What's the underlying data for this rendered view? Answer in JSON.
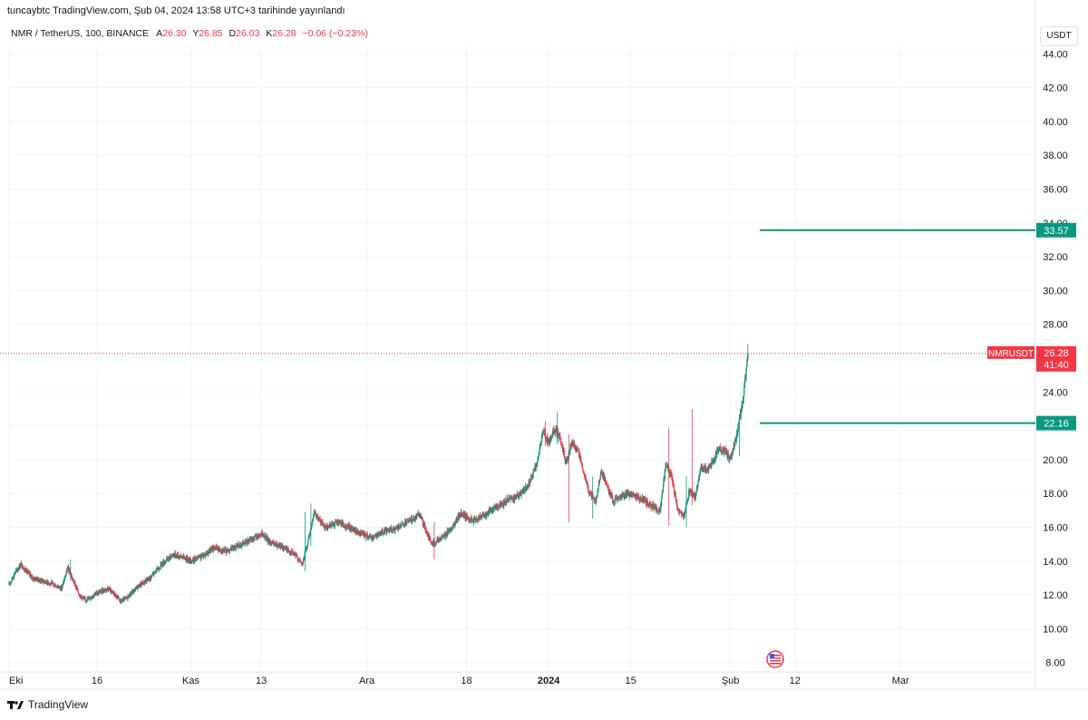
{
  "caption": "tuncaybtc TradingView.com, Şub 04, 2024 13:58 UTC+3 tarihinde yayınlandı",
  "header": {
    "symbol": "NMR / TetherUS, 100, BINANCE",
    "open_label": "A",
    "open": "26.30",
    "high_label": "Y",
    "high": "26.85",
    "low_label": "D",
    "low": "26.03",
    "close_label": "K",
    "close": "26.28",
    "change": "−0.06 (−0.23%)"
  },
  "currency_button": "USDT",
  "colors": {
    "up": "#089981",
    "down": "#f23645",
    "level": "#089981",
    "grid": "#f0f3fa",
    "axis_text": "#131722"
  },
  "chart_data": {
    "type": "candlestick",
    "y_ticks": [
      "8.00",
      "10.00",
      "12.00",
      "14.00",
      "16.00",
      "18.00",
      "20.00",
      "22.00",
      "24.00",
      "26.00",
      "28.00",
      "30.00",
      "32.00",
      "34.00",
      "36.00",
      "38.00",
      "40.00",
      "42.00",
      "44.00"
    ],
    "ylim": [
      7.5,
      44.5
    ],
    "x_ticks": [
      {
        "label": "Eki",
        "day": 0
      },
      {
        "label": "16",
        "day": 15
      },
      {
        "label": "Kas",
        "day": 31
      },
      {
        "label": "13",
        "day": 43
      },
      {
        "label": "Ara",
        "day": 61
      },
      {
        "label": "18",
        "day": 78
      },
      {
        "label": "2024",
        "day": 92,
        "bold": true
      },
      {
        "label": "15",
        "day": 106
      },
      {
        "label": "Şub",
        "day": 123
      },
      {
        "label": "12",
        "day": 134
      },
      {
        "label": "Mar",
        "day": 152
      }
    ],
    "xlim_days": [
      0,
      175
    ],
    "last_day": 125,
    "price_path": [
      [
        0,
        12.6
      ],
      [
        1,
        13.3
      ],
      [
        2,
        13.8
      ],
      [
        4,
        13.0
      ],
      [
        7,
        12.7
      ],
      [
        9,
        12.4
      ],
      [
        10,
        13.6
      ],
      [
        12,
        12.0
      ],
      [
        13,
        11.7
      ],
      [
        15,
        12.1
      ],
      [
        17,
        12.4
      ],
      [
        19,
        11.6
      ],
      [
        20,
        11.8
      ],
      [
        22,
        12.5
      ],
      [
        24,
        13.0
      ],
      [
        26,
        13.8
      ],
      [
        28,
        14.4
      ],
      [
        30,
        14.2
      ],
      [
        31,
        14.0
      ],
      [
        33,
        14.3
      ],
      [
        35,
        14.8
      ],
      [
        37,
        14.6
      ],
      [
        39,
        14.9
      ],
      [
        41,
        15.2
      ],
      [
        43,
        15.6
      ],
      [
        45,
        15.0
      ],
      [
        47,
        14.8
      ],
      [
        49,
        14.3
      ],
      [
        50,
        13.8
      ],
      [
        51,
        15.2
      ],
      [
        52,
        16.8
      ],
      [
        54,
        16.0
      ],
      [
        56,
        16.3
      ],
      [
        58,
        16.0
      ],
      [
        60,
        15.6
      ],
      [
        62,
        15.4
      ],
      [
        64,
        15.8
      ],
      [
        66,
        15.9
      ],
      [
        68,
        16.3
      ],
      [
        70,
        16.8
      ],
      [
        72,
        15.0
      ],
      [
        74,
        15.4
      ],
      [
        76,
        16.2
      ],
      [
        77,
        16.8
      ],
      [
        79,
        16.4
      ],
      [
        81,
        16.7
      ],
      [
        83,
        17.2
      ],
      [
        85,
        17.6
      ],
      [
        87,
        17.9
      ],
      [
        88,
        18.2
      ],
      [
        89,
        18.8
      ],
      [
        90,
        19.8
      ],
      [
        91,
        21.6
      ],
      [
        92,
        21.0
      ],
      [
        93,
        21.8
      ],
      [
        94,
        21.2
      ],
      [
        95,
        19.8
      ],
      [
        96,
        21.0
      ],
      [
        97,
        20.6
      ],
      [
        98,
        19.2
      ],
      [
        99,
        18.0
      ],
      [
        100,
        17.5
      ],
      [
        101,
        19.3
      ],
      [
        102,
        18.5
      ],
      [
        103,
        17.5
      ],
      [
        104,
        17.8
      ],
      [
        106,
        18.0
      ],
      [
        108,
        17.6
      ],
      [
        110,
        17.2
      ],
      [
        111,
        16.9
      ],
      [
        112,
        19.8
      ],
      [
        113,
        19.0
      ],
      [
        114,
        17.0
      ],
      [
        115,
        16.6
      ],
      [
        116,
        18.2
      ],
      [
        117,
        17.8
      ],
      [
        118,
        19.6
      ],
      [
        119,
        19.4
      ],
      [
        120,
        19.9
      ],
      [
        121,
        20.7
      ],
      [
        122,
        20.5
      ],
      [
        123,
        20.0
      ],
      [
        124,
        21.3
      ],
      [
        125,
        23.2
      ],
      [
        125.6,
        25.0
      ],
      [
        126,
        26.28
      ]
    ],
    "spikes": [
      {
        "day": 10,
        "high": 14.1,
        "low": 12.8
      },
      {
        "day": 50,
        "high": 16.9,
        "low": 13.4
      },
      {
        "day": 51,
        "high": 17.4,
        "low": 14.9
      },
      {
        "day": 72,
        "high": 16.3,
        "low": 14.1
      },
      {
        "day": 91,
        "high": 22.3,
        "low": 20.8
      },
      {
        "day": 93,
        "high": 22.8,
        "low": 20.9
      },
      {
        "day": 95,
        "high": 21.5,
        "low": 16.3
      },
      {
        "day": 99,
        "high": 19.0,
        "low": 16.5
      },
      {
        "day": 112,
        "high": 21.9,
        "low": 16.1
      },
      {
        "day": 115,
        "high": 19.0,
        "low": 16.0
      },
      {
        "day": 116,
        "high": 23.0,
        "low": 17.3
      },
      {
        "day": 124,
        "high": 22.4,
        "low": 20.2
      },
      {
        "day": 126,
        "high": 26.85,
        "low": 25.4
      }
    ],
    "levels": [
      {
        "value": 33.57,
        "label": "33.57",
        "start_day": 128
      },
      {
        "value": 22.16,
        "label": "22.16",
        "start_day": 128
      }
    ],
    "last_price": {
      "value": 26.28,
      "label": "26.28",
      "symbol": "NMRUSDT",
      "countdown": "41:40"
    }
  },
  "footer": {
    "logo_text": "TradingView"
  }
}
